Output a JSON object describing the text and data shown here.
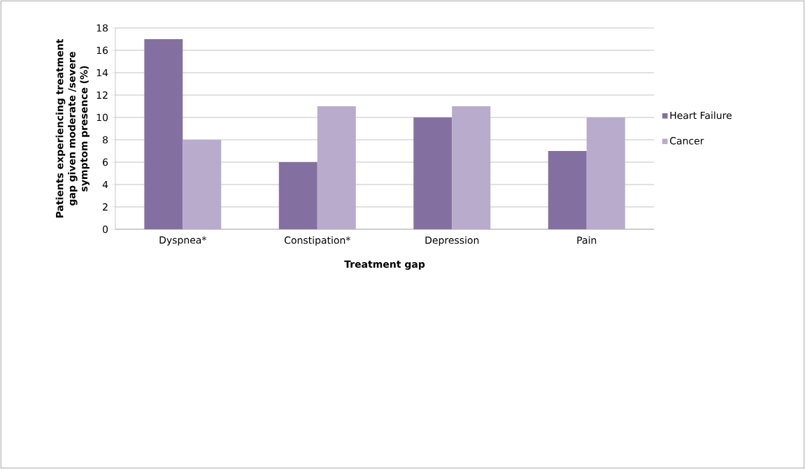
{
  "chart_data": {
    "type": "bar",
    "xlabel": "Treatment gap",
    "ylabel": "Patients experiencing treatment gap given moderate /severe symptom presence (%)",
    "categories": [
      "Dyspnea*",
      "Constipation*",
      "Depression",
      "Pain"
    ],
    "series": [
      {
        "name": "Heart Failure",
        "color": "#8470a0",
        "values": [
          17,
          6,
          10,
          7
        ]
      },
      {
        "name": "Cancer",
        "color": "#b8abcb",
        "values": [
          8,
          11,
          11,
          10
        ]
      }
    ],
    "ylim": [
      0,
      18
    ],
    "yticks": [
      0,
      2,
      4,
      6,
      8,
      10,
      12,
      14,
      16,
      18
    ],
    "grid": "y",
    "legend": "right"
  }
}
